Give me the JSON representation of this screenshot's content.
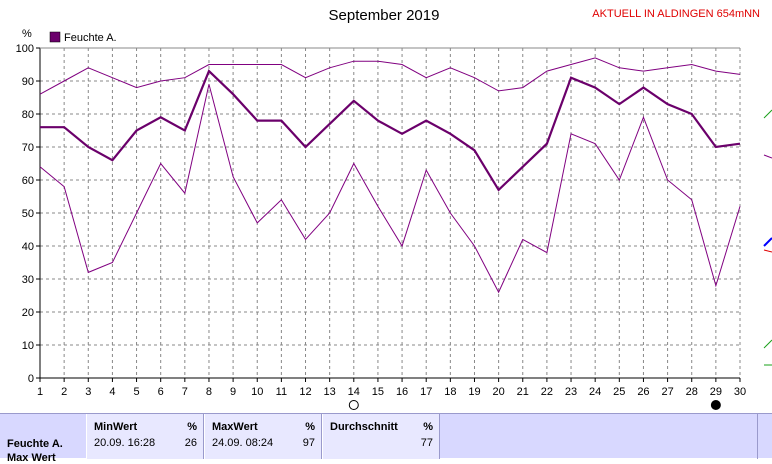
{
  "header": {
    "title": "September 2019",
    "station": "AKTUELL IN ALDINGEN 654mNN"
  },
  "chart_data": {
    "type": "line",
    "title": "September 2019",
    "ylabel": "%",
    "ylim": [
      0,
      100
    ],
    "yticks": [
      0,
      10,
      20,
      30,
      40,
      50,
      60,
      70,
      80,
      90,
      100
    ],
    "x": [
      1,
      2,
      3,
      4,
      5,
      6,
      7,
      8,
      9,
      10,
      11,
      12,
      13,
      14,
      15,
      16,
      17,
      18,
      19,
      20,
      21,
      22,
      23,
      24,
      25,
      26,
      27,
      28,
      29,
      30
    ],
    "xlim": [
      1,
      30
    ],
    "legend": {
      "label": "Feuchte A.",
      "color": "#6b006b",
      "position": "top-left"
    },
    "grid": true,
    "series": [
      {
        "role": "max",
        "color": "#800080",
        "stroke_width": 1,
        "values": [
          86,
          90,
          94,
          91,
          88,
          90,
          91,
          95,
          95,
          95,
          95,
          91,
          94,
          96,
          96,
          95,
          91,
          94,
          91,
          87,
          88,
          93,
          95,
          97,
          94,
          93,
          94,
          95,
          93,
          92
        ]
      },
      {
        "role": "avg",
        "color": "#6b006b",
        "stroke_width": 2.2,
        "values": [
          76,
          76,
          70,
          66,
          75,
          79,
          75,
          93,
          86,
          78,
          78,
          70,
          77,
          84,
          78,
          74,
          78,
          74,
          69,
          57,
          64,
          71,
          91,
          88,
          83,
          88,
          83,
          80,
          70,
          71
        ]
      },
      {
        "role": "min",
        "color": "#800080",
        "stroke_width": 1,
        "values": [
          64,
          58,
          32,
          35,
          50,
          65,
          56,
          89,
          61,
          47,
          54,
          42,
          50,
          65,
          52,
          40,
          63,
          50,
          40,
          26,
          42,
          38,
          74,
          71,
          60,
          79,
          60,
          54,
          28,
          52
        ]
      }
    ],
    "moon_markers": [
      {
        "day": 14,
        "phase": "full-moon"
      },
      {
        "day": 29,
        "phase": "new-moon"
      }
    ]
  },
  "stats": {
    "row_label": "Feuchte A.",
    "row_label_2": "Max Wert",
    "min": {
      "header": "MinWert",
      "unit": "%",
      "time": "20.09.  16:28",
      "value": "26"
    },
    "max": {
      "header": "MaxWert",
      "unit": "%",
      "time": "24.09.  08:24",
      "value": "97"
    },
    "avg": {
      "header": "Durchschnitt",
      "unit": "%",
      "value": "77"
    }
  }
}
